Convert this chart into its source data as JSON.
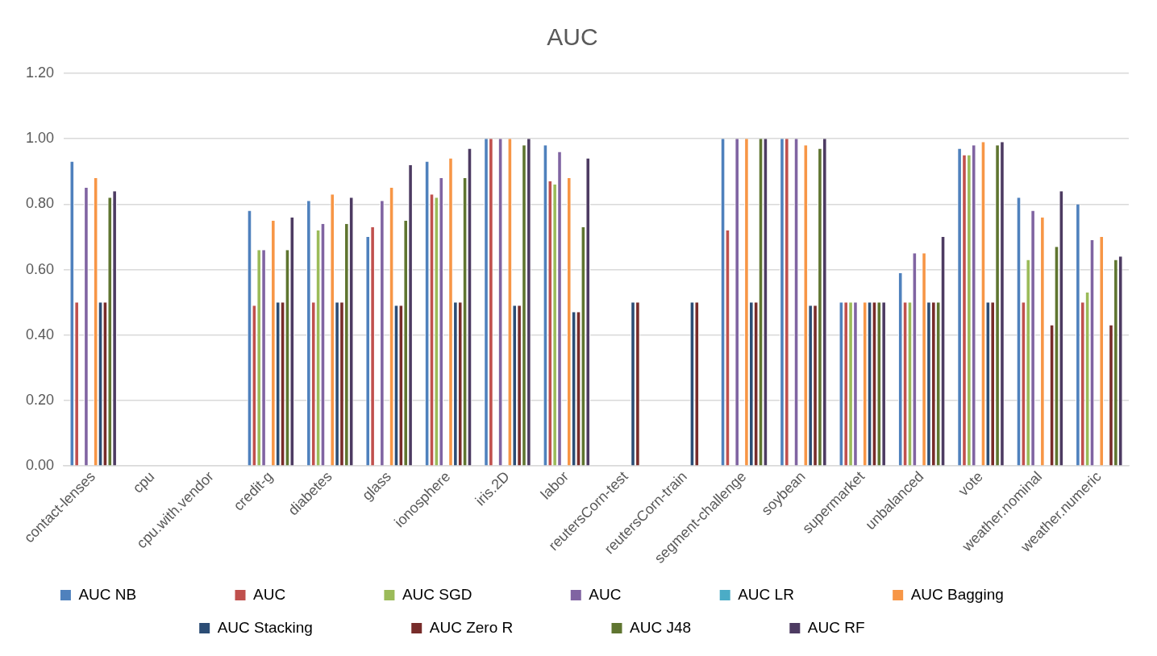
{
  "chart_data": {
    "type": "bar",
    "title": "AUC",
    "categories": [
      "contact-lenses",
      "cpu",
      "cpu.with.vendor",
      "credit-g",
      "diabetes",
      "glass",
      "ionosphere",
      "iris.2D",
      "labor",
      "reutersCorn-test",
      "reutersCorn-train",
      "segment-challenge",
      "soybean",
      "supermarket",
      "unbalanced",
      "vote",
      "weather.nominal",
      "weather.numeric"
    ],
    "series": [
      {
        "name": "AUC NB",
        "color": "#4f81bd",
        "values": [
          0.93,
          null,
          null,
          0.78,
          0.81,
          0.7,
          0.93,
          1.0,
          0.98,
          null,
          null,
          1.0,
          1.0,
          0.5,
          0.59,
          0.97,
          0.82,
          0.8
        ]
      },
      {
        "name": "AUC",
        "color": "#c0504d",
        "values": [
          0.5,
          null,
          null,
          0.49,
          0.5,
          0.73,
          0.83,
          1.0,
          0.87,
          null,
          null,
          0.72,
          1.0,
          0.5,
          0.5,
          0.95,
          0.5,
          0.5
        ]
      },
      {
        "name": "AUC SGD",
        "color": "#9bbb59",
        "values": [
          null,
          null,
          null,
          0.66,
          0.72,
          null,
          0.82,
          null,
          0.86,
          null,
          null,
          null,
          null,
          0.5,
          0.5,
          0.95,
          0.63,
          0.53
        ]
      },
      {
        "name": "AUC",
        "color": "#8064a2",
        "values": [
          0.85,
          null,
          null,
          0.66,
          0.74,
          0.81,
          0.88,
          1.0,
          0.96,
          null,
          null,
          1.0,
          1.0,
          0.5,
          0.65,
          0.98,
          0.78,
          0.69
        ]
      },
      {
        "name": "AUC LR",
        "color": "#4bacc6",
        "values": [
          null,
          null,
          null,
          null,
          null,
          null,
          null,
          null,
          null,
          null,
          null,
          null,
          null,
          null,
          null,
          null,
          null,
          null
        ]
      },
      {
        "name": "AUC Bagging",
        "color": "#f79646",
        "values": [
          0.88,
          null,
          null,
          0.75,
          0.83,
          0.85,
          0.94,
          1.0,
          0.88,
          null,
          null,
          1.0,
          0.98,
          0.5,
          0.65,
          0.99,
          0.76,
          0.7
        ]
      },
      {
        "name": "AUC Stacking",
        "color": "#2c4d75",
        "values": [
          0.5,
          null,
          null,
          0.5,
          0.5,
          0.49,
          0.5,
          0.49,
          0.47,
          0.5,
          0.5,
          0.5,
          0.49,
          0.5,
          0.5,
          0.5,
          null,
          null
        ]
      },
      {
        "name": "AUC Zero R",
        "color": "#772c2a",
        "values": [
          0.5,
          null,
          null,
          0.5,
          0.5,
          0.49,
          0.5,
          0.49,
          0.47,
          0.5,
          0.5,
          0.5,
          0.49,
          0.5,
          0.5,
          0.5,
          0.43,
          0.43
        ]
      },
      {
        "name": "AUC J48",
        "color": "#5f7530",
        "values": [
          0.82,
          null,
          null,
          0.66,
          0.74,
          0.75,
          0.88,
          0.98,
          0.73,
          null,
          null,
          1.0,
          0.97,
          0.5,
          0.5,
          0.98,
          0.67,
          0.63
        ]
      },
      {
        "name": "AUC RF",
        "color": "#4d3b62",
        "values": [
          0.84,
          null,
          null,
          0.76,
          0.82,
          0.92,
          0.97,
          1.0,
          0.94,
          null,
          null,
          1.0,
          1.0,
          0.5,
          0.7,
          0.99,
          0.84,
          0.64
        ]
      }
    ],
    "ylim": [
      0,
      1.2
    ],
    "yticks": [
      {
        "value": 0,
        "label": "0.00"
      },
      {
        "value": 0.2,
        "label": "0.20"
      },
      {
        "value": 0.4,
        "label": "0.40"
      },
      {
        "value": 0.6,
        "label": "0.60"
      },
      {
        "value": 0.8,
        "label": "0.80"
      },
      {
        "value": 1,
        "label": "1.00"
      },
      {
        "value": 1.2,
        "label": "1.20"
      }
    ],
    "grid": "y",
    "legend": "bottom"
  }
}
